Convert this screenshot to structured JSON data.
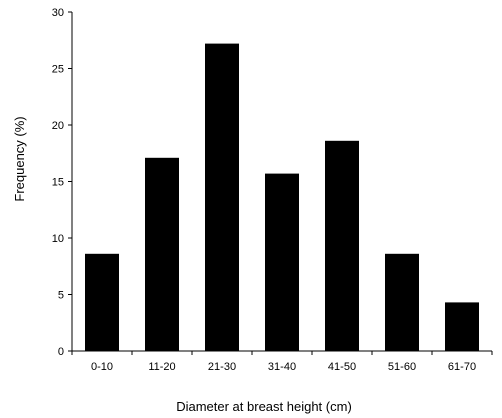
{
  "chart_data": {
    "type": "bar",
    "title": "",
    "xlabel": "Diameter at breast height (cm)",
    "ylabel": "Frequency (%)",
    "categories": [
      "0-10",
      "11-20",
      "21-30",
      "31-40",
      "41-50",
      "51-60",
      "61-70"
    ],
    "values": [
      8.6,
      17.1,
      27.2,
      15.7,
      18.6,
      8.6,
      4.3
    ],
    "ylim": [
      0,
      30
    ],
    "yticks": [
      "0",
      "5",
      "10",
      "15",
      "20",
      "25",
      "30"
    ],
    "grid": false,
    "legend": "none",
    "bar_color": "#000000"
  }
}
